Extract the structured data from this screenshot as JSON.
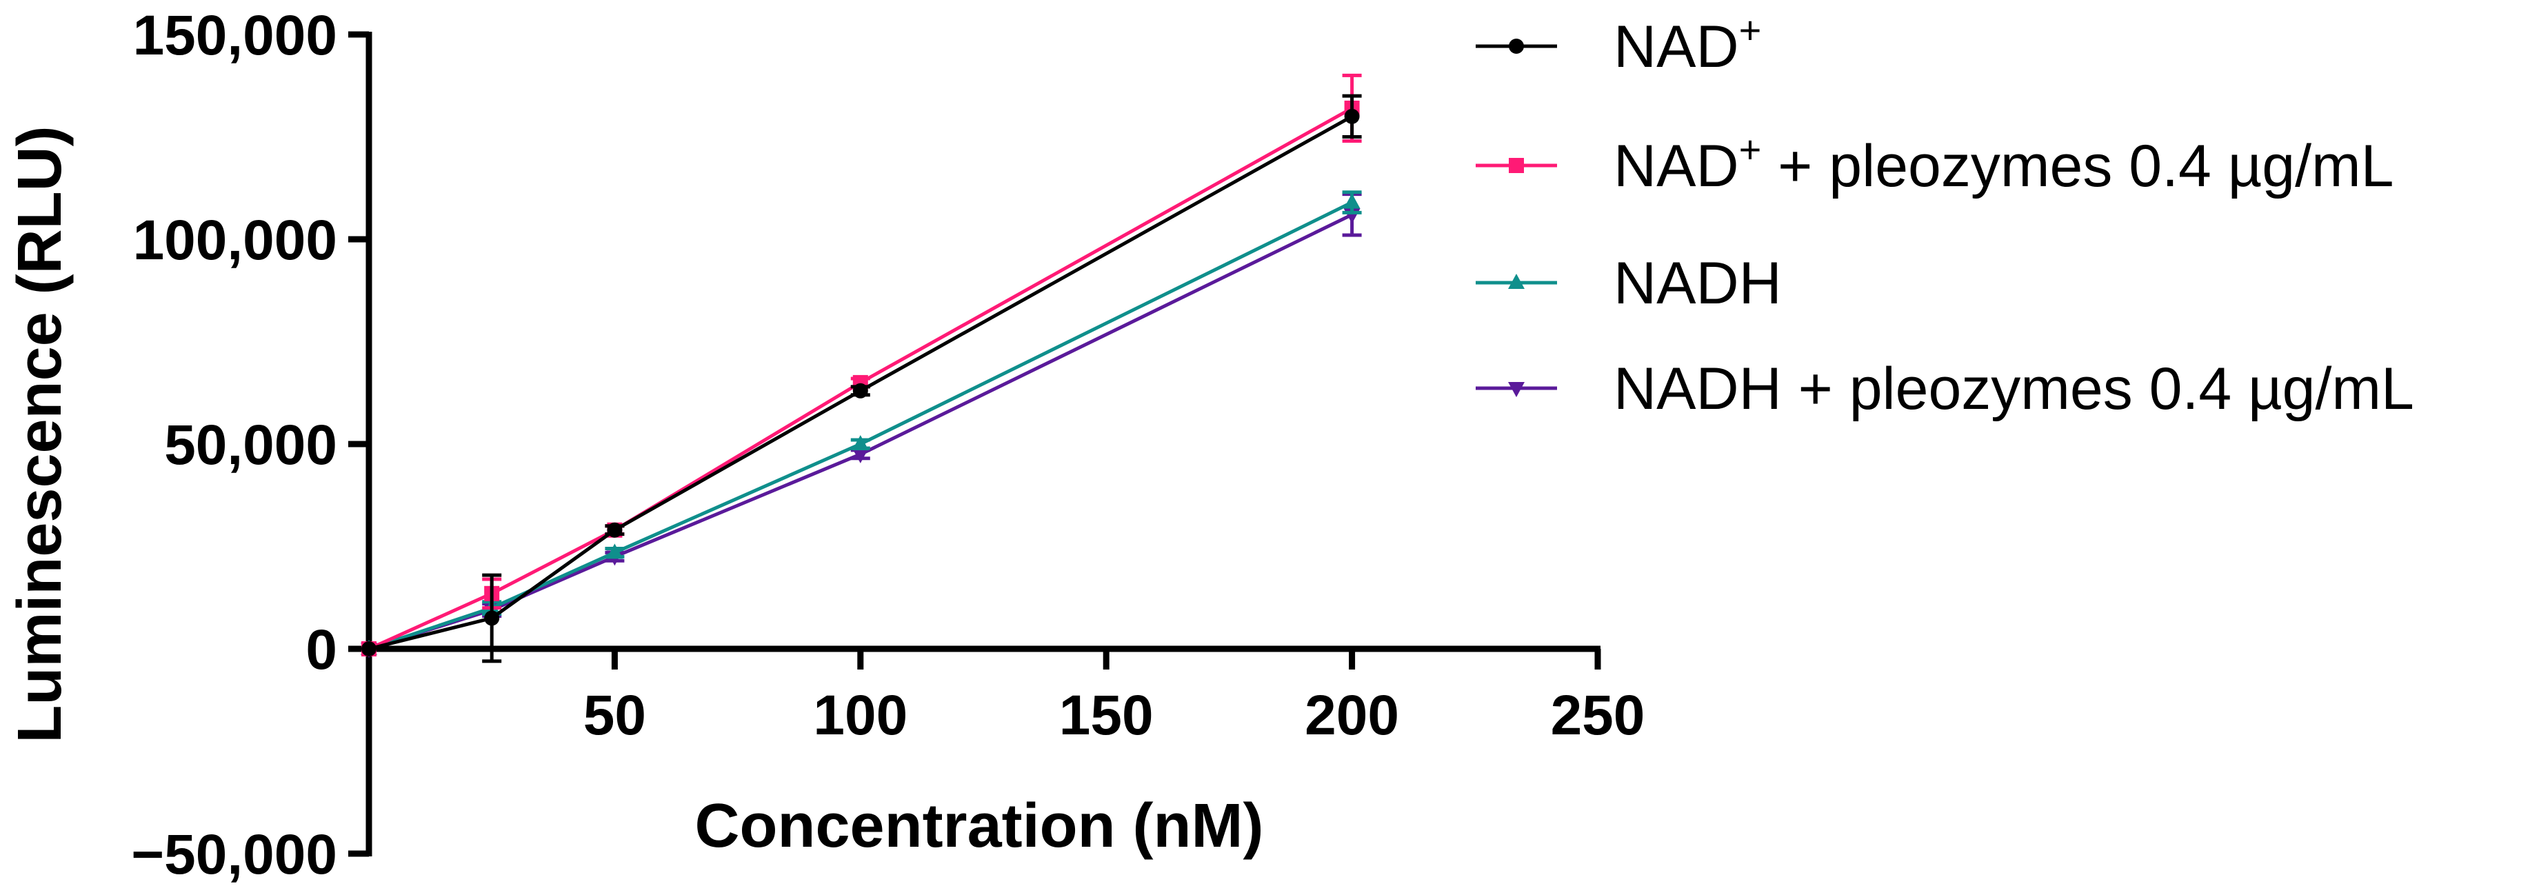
{
  "chart_data": {
    "type": "line",
    "xlabel": "Concentration (nM)",
    "ylabel": "Luminescence (RLU)",
    "xlim": [
      0,
      250
    ],
    "ylim": [
      -50000,
      150000
    ],
    "x_ticks": [
      {
        "value": 50,
        "label": "50"
      },
      {
        "value": 100,
        "label": "100"
      },
      {
        "value": 150,
        "label": "150"
      },
      {
        "value": 200,
        "label": "200"
      },
      {
        "value": 250,
        "label": "250"
      }
    ],
    "y_ticks": [
      {
        "value": 150000,
        "label": "150,000"
      },
      {
        "value": 100000,
        "label": "100,000"
      },
      {
        "value": 50000,
        "label": "50,000"
      },
      {
        "value": 0,
        "label": "0"
      },
      {
        "value": -50000,
        "label": "−50,000"
      }
    ],
    "x": [
      0,
      25,
      50,
      100,
      200
    ],
    "series": [
      {
        "name": "NAD",
        "name_sup": "+",
        "name_rest": "",
        "color": "#000000",
        "marker": "circle",
        "values": [
          0,
          7500,
          29000,
          63000,
          130000
        ],
        "errors": [
          0,
          10500,
          1000,
          1000,
          5000
        ]
      },
      {
        "name": "NAD",
        "name_sup": "+",
        "name_rest": " + pleozymes 0.4 µg/mL",
        "color": "#ff1a75",
        "marker": "square",
        "values": [
          0,
          13500,
          29000,
          65000,
          132000
        ],
        "errors": [
          0,
          3500,
          1000,
          1000,
          8000
        ]
      },
      {
        "name": "NADH",
        "name_sup": "",
        "name_rest": "",
        "color": "#0f8f8c",
        "marker": "triangle-up",
        "values": [
          0,
          10000,
          23500,
          50000,
          109000
        ],
        "errors": [
          0,
          1500,
          1000,
          1000,
          2500
        ]
      },
      {
        "name": "NADH + pleozymes 0.4 µg/mL",
        "name_sup": "",
        "name_rest": "",
        "color": "#5a1a9a",
        "marker": "triangle-down",
        "values": [
          0,
          9500,
          22500,
          47500,
          106000
        ],
        "errors": [
          0,
          1500,
          1000,
          1000,
          5000
        ]
      }
    ]
  }
}
